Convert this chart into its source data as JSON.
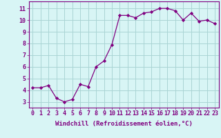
{
  "x": [
    0,
    1,
    2,
    3,
    4,
    5,
    6,
    7,
    8,
    9,
    10,
    11,
    12,
    13,
    14,
    15,
    16,
    17,
    18,
    19,
    20,
    21,
    22,
    23
  ],
  "y": [
    4.2,
    4.2,
    4.4,
    3.3,
    3.0,
    3.2,
    4.5,
    4.3,
    6.0,
    6.5,
    7.9,
    10.4,
    10.4,
    10.2,
    10.6,
    10.7,
    11.0,
    11.0,
    10.8,
    10.0,
    10.6,
    9.9,
    10.0,
    9.7
  ],
  "line_color": "#800080",
  "marker": "D",
  "marker_size": 2.2,
  "bg_color": "#d8f5f5",
  "grid_color": "#aad4d4",
  "xlabel": "Windchill (Refroidissement éolien,°C)",
  "ylabel_ticks": [
    3,
    4,
    5,
    6,
    7,
    8,
    9,
    10,
    11
  ],
  "xlim": [
    -0.5,
    23.5
  ],
  "ylim": [
    2.5,
    11.6
  ],
  "tick_color": "#800080",
  "label_color": "#800080",
  "xlabel_fontsize": 6.5,
  "tick_fontsize": 6.0,
  "spine_color": "#800080",
  "border_color": "#800080"
}
